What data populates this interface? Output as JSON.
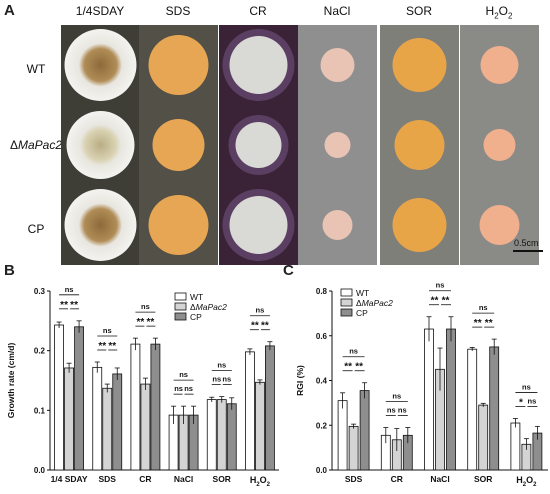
{
  "panelA": {
    "letter": "A",
    "columns": [
      "1/4SDAY",
      "SDS",
      "CR",
      "NaCl",
      "SOR",
      "H2O2"
    ],
    "rows": [
      {
        "prefix": "",
        "label": "WT",
        "italic": false
      },
      {
        "prefix": "Δ",
        "label": "MaPac2",
        "italic": true
      },
      {
        "prefix": "",
        "label": "CP",
        "italic": false
      }
    ],
    "scale_bar": "0.5cm",
    "colors": {
      "sday_bg": "#3e3e36",
      "sds_bg": "#535048",
      "cr_bg": "#3a2336",
      "nacl_bg": "#8f8f8f",
      "sor_bg": "#7f7f79",
      "h2o2_bg": "#8a8a86",
      "sds_colony": "#e7a654",
      "cr_colony": "#d9d9d6",
      "nacl_colony": "#e9c4b4",
      "sor_colony": "#e8a548",
      "h2o2_colony": "#f0b08e"
    }
  },
  "chart_data": [
    {
      "panel": "B",
      "type": "bar",
      "ylabel": "Growth rate (cm/d)",
      "ylim": [
        0,
        0.3
      ],
      "yticks": [
        "0.0",
        "0.1",
        "0.2",
        "0.3"
      ],
      "categories": [
        "1/4 SDAY",
        "SDS",
        "CR",
        "NaCl",
        "SOR",
        "H2O2"
      ],
      "series": [
        {
          "name": "WT",
          "fill": "#ffffff",
          "values": [
            0.243,
            0.172,
            0.211,
            0.092,
            0.118,
            0.198
          ],
          "errors": [
            0.005,
            0.009,
            0.01,
            0.015,
            0.004,
            0.005
          ]
        },
        {
          "name": "ΔMaPac2",
          "fill": "#d4d4d4",
          "values": [
            0.171,
            0.137,
            0.144,
            0.092,
            0.118,
            0.147
          ],
          "errors": [
            0.008,
            0.007,
            0.01,
            0.015,
            0.005,
            0.004
          ]
        },
        {
          "name": "CP",
          "fill": "#8e8e8e",
          "values": [
            0.24,
            0.161,
            0.211,
            0.092,
            0.111,
            0.208
          ],
          "errors": [
            0.01,
            0.01,
            0.01,
            0.015,
            0.01,
            0.007
          ]
        }
      ],
      "significance": [
        {
          "category": 0,
          "top": "ns",
          "left": "**",
          "right": "**"
        },
        {
          "category": 1,
          "top": "ns",
          "left": "**",
          "right": "**"
        },
        {
          "category": 2,
          "top": "ns",
          "left": "**",
          "right": "**"
        },
        {
          "category": 3,
          "top": "ns",
          "left": "ns",
          "right": "ns"
        },
        {
          "category": 4,
          "top": "ns",
          "left": "ns",
          "right": "ns"
        },
        {
          "category": 5,
          "top": "ns",
          "left": "**",
          "right": "**"
        }
      ],
      "legend": "top-right"
    },
    {
      "panel": "C",
      "type": "bar",
      "ylabel": "RGI (%)",
      "ylim": [
        0,
        0.8
      ],
      "yticks": [
        "0.0",
        "0.2",
        "0.4",
        "0.6",
        "0.8"
      ],
      "categories": [
        "SDS",
        "CR",
        "NaCl",
        "SOR",
        "H2O2"
      ],
      "series": [
        {
          "name": "WT",
          "fill": "#ffffff",
          "values": [
            0.31,
            0.155,
            0.63,
            0.54,
            0.21
          ],
          "errors": [
            0.035,
            0.035,
            0.055,
            0.008,
            0.02
          ]
        },
        {
          "name": "ΔMaPac2",
          "fill": "#d4d4d4",
          "values": [
            0.195,
            0.135,
            0.45,
            0.29,
            0.115
          ],
          "errors": [
            0.01,
            0.05,
            0.095,
            0.008,
            0.025
          ]
        },
        {
          "name": "CP",
          "fill": "#8e8e8e",
          "values": [
            0.355,
            0.155,
            0.63,
            0.55,
            0.165
          ],
          "errors": [
            0.035,
            0.035,
            0.055,
            0.035,
            0.03
          ]
        }
      ],
      "significance": [
        {
          "category": 0,
          "top": "ns",
          "left": "**",
          "right": "**"
        },
        {
          "category": 1,
          "top": "ns",
          "left": "ns",
          "right": "ns"
        },
        {
          "category": 2,
          "top": "ns",
          "left": "**",
          "right": "**"
        },
        {
          "category": 3,
          "top": "ns",
          "left": "**",
          "right": "**"
        },
        {
          "category": 4,
          "top": "ns",
          "left": "*",
          "right": "ns"
        }
      ],
      "legend": "top-left"
    }
  ]
}
